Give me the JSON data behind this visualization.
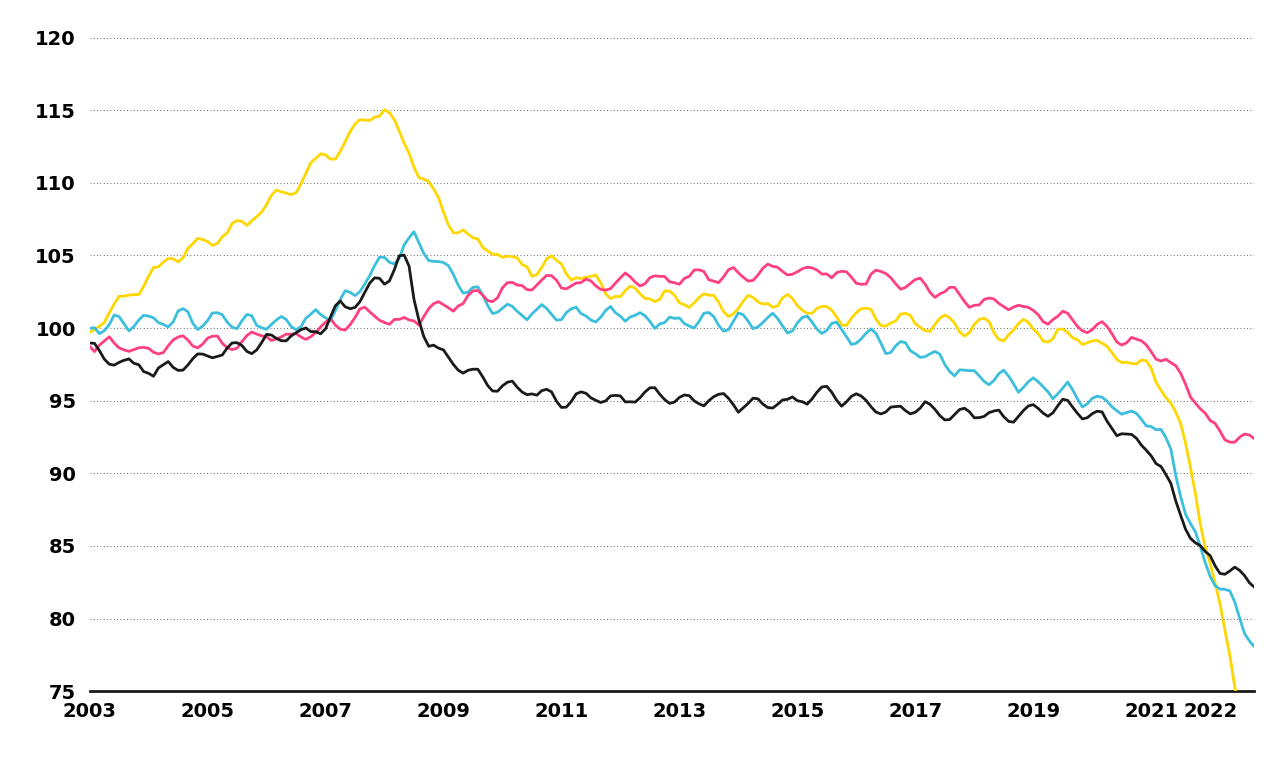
{
  "background_color": "#ffffff",
  "xlim": [
    2003.0,
    2022.75
  ],
  "ylim": [
    75,
    121
  ],
  "yticks": [
    75,
    80,
    85,
    90,
    95,
    100,
    105,
    110,
    115,
    120
  ],
  "xticks": [
    2003,
    2005,
    2007,
    2009,
    2011,
    2013,
    2015,
    2017,
    2019,
    2021,
    2022
  ],
  "line_colors": [
    "#FFD700",
    "#3BBFDD",
    "#FF4080",
    "#1a1a1a"
  ],
  "line_width": 2.0,
  "grid_color": "#333333",
  "grid_linewidth": 0.6
}
